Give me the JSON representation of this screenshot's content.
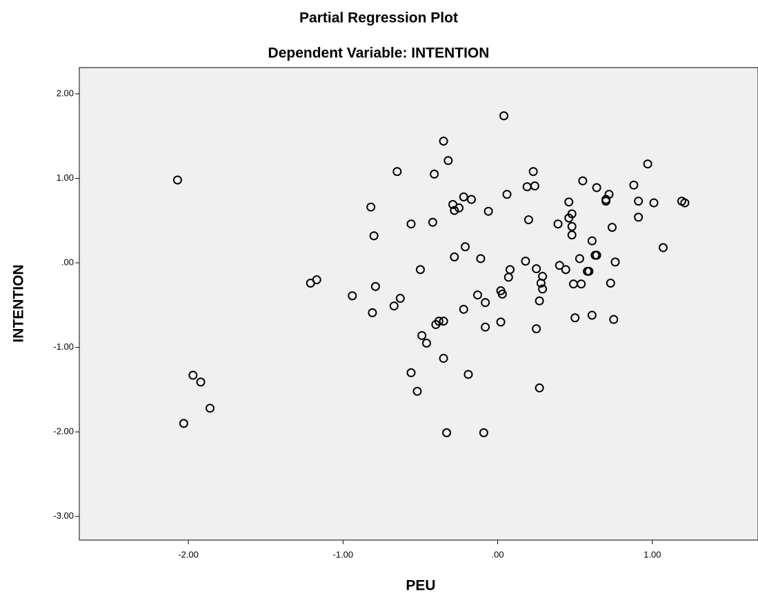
{
  "chart_data": {
    "type": "scatter",
    "title": "Partial Regression Plot",
    "subtitle": "Dependent Variable: INTENTION",
    "x_label": "PEU",
    "y_label": "INTENTION",
    "color": "#000000",
    "xlim": [
      -2.705,
      1.683
    ],
    "ylim": [
      -3.28,
      2.31
    ],
    "xticks": [
      {
        "value": -2,
        "label": "-2.00"
      },
      {
        "value": -1,
        "label": "-1.00"
      },
      {
        "value": 0,
        "label": ".00"
      },
      {
        "value": 1,
        "label": "1.00"
      }
    ],
    "yticks": [
      {
        "value": 2,
        "label": "2.00"
      },
      {
        "value": 1,
        "label": "1.00"
      },
      {
        "value": 0,
        "label": ".00"
      },
      {
        "value": -1,
        "label": "-1.00"
      },
      {
        "value": -2,
        "label": "-2.00"
      },
      {
        "value": -3,
        "label": "-3.00"
      }
    ],
    "x": [
      -2.07,
      -1.97,
      -1.92,
      -2.03,
      -1.86,
      -1.21,
      -1.17,
      -0.94,
      -0.8,
      -0.79,
      -0.81,
      -0.82,
      -0.65,
      -0.67,
      -0.63,
      -0.56,
      -0.5,
      -0.49,
      -0.46,
      -0.56,
      -0.52,
      -0.41,
      -0.42,
      -0.4,
      -0.38,
      -0.35,
      -0.35,
      -0.35,
      -0.32,
      -0.33,
      -0.29,
      -0.28,
      -0.25,
      -0.28,
      -0.22,
      -0.17,
      -0.21,
      -0.22,
      -0.19,
      -0.11,
      -0.13,
      -0.08,
      -0.06,
      -0.08,
      -0.09,
      0.04,
      0.02,
      0.03,
      0.02,
      0.06,
      0.08,
      0.07,
      0.23,
      0.19,
      0.24,
      0.2,
      0.18,
      0.25,
      0.29,
      0.28,
      0.29,
      0.27,
      0.25,
      0.27,
      0.39,
      0.4,
      0.44,
      0.46,
      0.46,
      0.48,
      0.48,
      0.48,
      0.49,
      0.5,
      0.55,
      0.53,
      0.54,
      0.58,
      0.59,
      0.61,
      0.61,
      0.64,
      0.63,
      0.64,
      0.72,
      0.7,
      0.7,
      0.74,
      0.73,
      0.75,
      0.76,
      0.88,
      0.91,
      0.91,
      0.97,
      1.01,
      1.07,
      1.19,
      1.21
    ],
    "y": [
      0.98,
      -1.33,
      -1.41,
      -1.9,
      -1.72,
      -0.24,
      -0.2,
      -0.39,
      0.32,
      -0.28,
      -0.59,
      0.66,
      1.08,
      -0.51,
      -0.42,
      0.46,
      -0.08,
      -0.86,
      -0.95,
      -1.3,
      -1.52,
      1.05,
      0.48,
      -0.73,
      -0.69,
      -0.69,
      -1.13,
      1.44,
      1.21,
      -2.01,
      0.69,
      0.62,
      0.65,
      0.07,
      0.78,
      0.75,
      0.19,
      -0.55,
      -1.32,
      0.05,
      -0.38,
      -0.47,
      0.61,
      -0.76,
      -2.01,
      1.74,
      -0.33,
      -0.37,
      -0.7,
      0.81,
      -0.08,
      -0.17,
      1.08,
      0.9,
      0.91,
      0.51,
      0.02,
      -0.07,
      -0.16,
      -0.24,
      -0.31,
      -0.45,
      -0.78,
      -1.48,
      0.46,
      -0.03,
      -0.08,
      0.72,
      0.53,
      0.58,
      0.43,
      0.33,
      -0.25,
      -0.65,
      0.97,
      0.05,
      -0.25,
      -0.1,
      -0.1,
      0.26,
      -0.62,
      0.89,
      0.09,
      0.09,
      0.81,
      0.75,
      0.73,
      0.42,
      -0.24,
      -0.67,
      0.01,
      0.92,
      0.73,
      0.54,
      1.17,
      0.71,
      0.18,
      0.73,
      0.71
    ]
  }
}
